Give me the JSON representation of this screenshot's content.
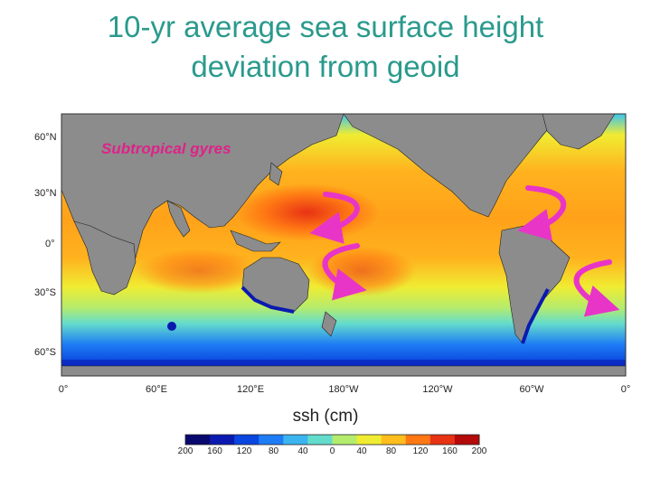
{
  "title": {
    "line1": "10-yr average sea surface height",
    "line2": "deviation from geoid"
  },
  "map": {
    "lat_labels": [
      "60°N",
      "30°N",
      "0°",
      "30°S",
      "60°S"
    ],
    "lon_labels": [
      "0°",
      "60°E",
      "120°E",
      "180°W",
      "120°W",
      "60°W",
      "0°"
    ],
    "annotation": "Subtropical gyres",
    "colors": {
      "land": "#8c8c8c",
      "ocean_background": "#ffa21a",
      "gyre_arrow": "#e835c8",
      "annotation": "#e0218a"
    }
  },
  "colorbar": {
    "title": "ssh (cm)",
    "ticks": [
      "200",
      "160",
      "120",
      "80",
      "40",
      "0",
      "40",
      "80",
      "120",
      "160",
      "200"
    ],
    "colors": [
      "#08086e",
      "#0a1ab0",
      "#0a46e0",
      "#1e7cf5",
      "#3cb4f0",
      "#64dccc",
      "#b4ec6e",
      "#f0ec32",
      "#ffbe1e",
      "#ff7814",
      "#e83214",
      "#b40a0a"
    ]
  }
}
